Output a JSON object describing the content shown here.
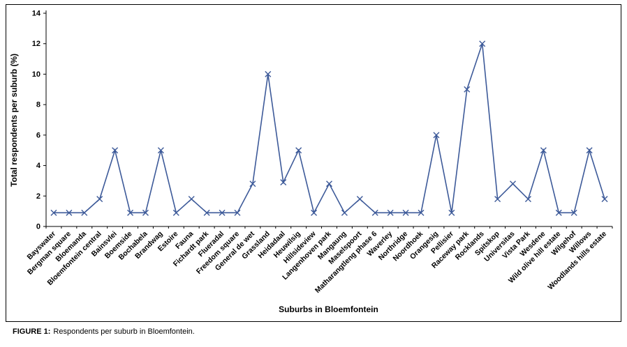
{
  "figure": {
    "caption_label": "FIGURE 1:",
    "caption_text": "Respondents per suburb in Bloemfontein."
  },
  "chart_data": {
    "type": "line",
    "title": "",
    "xlabel": "Suburbs in Bloemfontein",
    "ylabel": "Total respondents per suburb (%)",
    "ylim": [
      0,
      14
    ],
    "ytick_step": 2,
    "grid": false,
    "legend": "none",
    "marker": "x",
    "line_color": "#3d5a99",
    "axis_color": "#000000",
    "categories": [
      "Bayswater",
      "Bergman square",
      "Bloemanda",
      "Bloemfontein central",
      "Bainsvlei",
      "Boemside",
      "Bochabela",
      "Brandwag",
      "Estoire",
      "Fauna",
      "Fichardt park",
      "Flueradal",
      "Freedom square",
      "General de wet",
      "Grassland",
      "Heidadaal",
      "Heuwilsig",
      "Hillsideview",
      "Langenhoven park",
      "Mangaung",
      "Maselspoort",
      "Matharangtleng phase 6",
      "Waverley",
      "Northridge",
      "Noordhoek",
      "Orangesig",
      "Pellisier",
      "Raceway park",
      "Rocklands",
      "Spitskop",
      "Universitas",
      "Vista Park",
      "Wesdene",
      "Wild olive hill estate",
      "Wilgehof",
      "Willows",
      "Woodlands hills estate"
    ],
    "values": [
      0.9,
      0.9,
      0.9,
      1.8,
      5,
      0.9,
      0.9,
      5,
      0.9,
      1.8,
      0.9,
      0.9,
      0.9,
      2.8,
      10,
      2.9,
      5,
      0.9,
      2.8,
      0.9,
      1.8,
      0.9,
      0.9,
      0.9,
      0.9,
      6,
      0.9,
      9,
      12,
      1.8,
      2.8,
      1.8,
      5,
      0.9,
      0.9,
      5,
      1.8
    ]
  }
}
